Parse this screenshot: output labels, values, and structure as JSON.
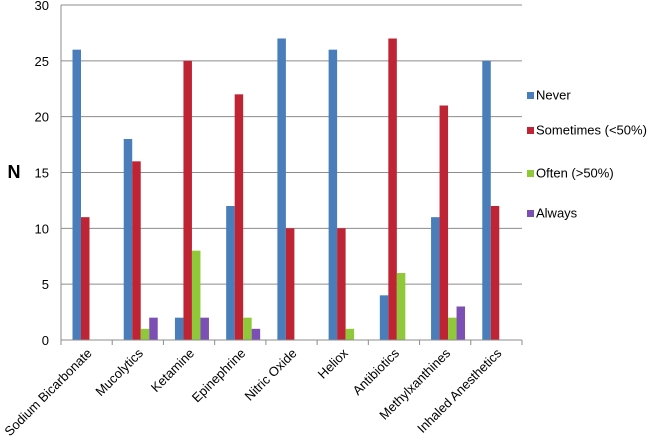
{
  "chart_data": {
    "type": "bar",
    "ylabel": "N",
    "ylim": [
      0,
      30
    ],
    "yticks": [
      "0",
      "5",
      "10",
      "15",
      "20",
      "25",
      "30"
    ],
    "grid": "horizontal",
    "legend_position": "right",
    "categories": [
      "Sodium Bicarbonate",
      "Mucolytics",
      "Ketamine",
      "Epinephrine",
      "Nitric Oxide",
      "Heliox",
      "Antibiotics",
      "Methylxanthines",
      "Inhaled Anesthetics"
    ],
    "series": [
      {
        "name": "Never",
        "color": "#4a7ebb",
        "values": [
          26,
          18,
          2,
          12,
          27,
          26,
          4,
          11,
          25
        ]
      },
      {
        "name": "Sometimes (<50%)",
        "color": "#be2433",
        "values": [
          11,
          16,
          25,
          22,
          10,
          10,
          27,
          21,
          12
        ]
      },
      {
        "name": "Often (>50%)",
        "color": "#8fc93a",
        "values": [
          0,
          1,
          8,
          2,
          0,
          1,
          6,
          2,
          0
        ]
      },
      {
        "name": "Always",
        "color": "#7b4fb3",
        "values": [
          0,
          2,
          2,
          1,
          0,
          0,
          0,
          3,
          0
        ]
      }
    ]
  }
}
